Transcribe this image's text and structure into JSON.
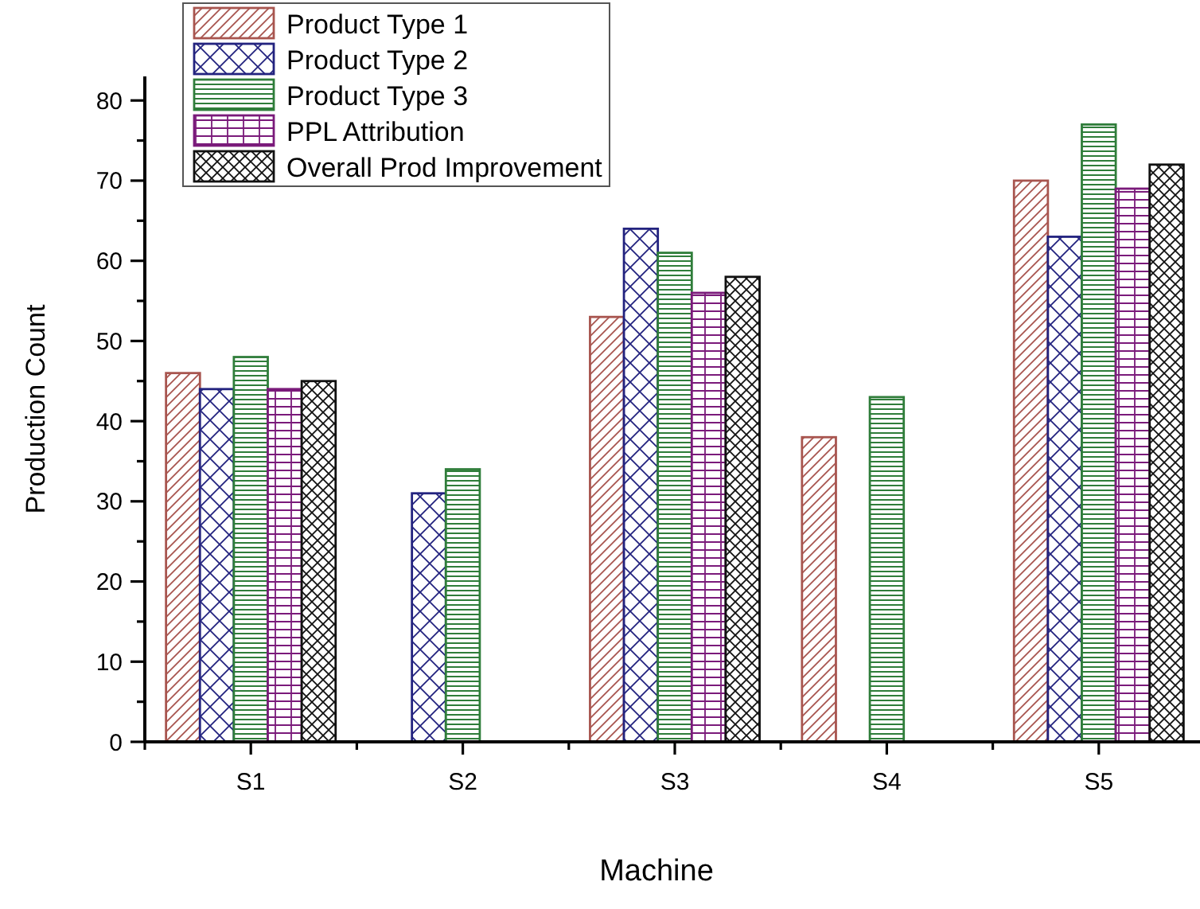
{
  "chart_data": {
    "type": "bar",
    "xlabel": "Machine",
    "ylabel": "Production Count",
    "categories": [
      "S1",
      "S2",
      "S3",
      "S4",
      "S5"
    ],
    "series": [
      {
        "name": "Product Type 1",
        "color": "#a8554f",
        "values": [
          46,
          null,
          53,
          38,
          70
        ]
      },
      {
        "name": "Product Type 2",
        "color": "#23237f",
        "values": [
          44,
          31,
          64,
          null,
          63
        ]
      },
      {
        "name": "Product Type 3",
        "color": "#2f7d3a",
        "values": [
          48,
          34,
          61,
          43,
          77
        ]
      },
      {
        "name": "PPL Attribution",
        "color": "#7a1a7a",
        "values": [
          44,
          null,
          56,
          null,
          69
        ]
      },
      {
        "name": "Overall Prod Improvement",
        "color": "#111111",
        "values": [
          45,
          null,
          58,
          null,
          72
        ]
      }
    ],
    "ylim": [
      0,
      83
    ],
    "yticks": [
      0,
      {
        "value": 5,
        "label": null
      },
      10,
      {
        "value": 15,
        "label": null
      },
      20,
      {
        "value": 25,
        "label": null
      },
      30,
      {
        "value": 35,
        "label": null
      },
      40,
      {
        "value": 45,
        "label": null
      },
      50,
      {
        "value": 55,
        "label": null
      },
      60,
      {
        "value": 65,
        "label": null
      },
      70,
      {
        "value": 75,
        "label": null
      },
      80
    ],
    "legend": "top left",
    "grid": false
  }
}
